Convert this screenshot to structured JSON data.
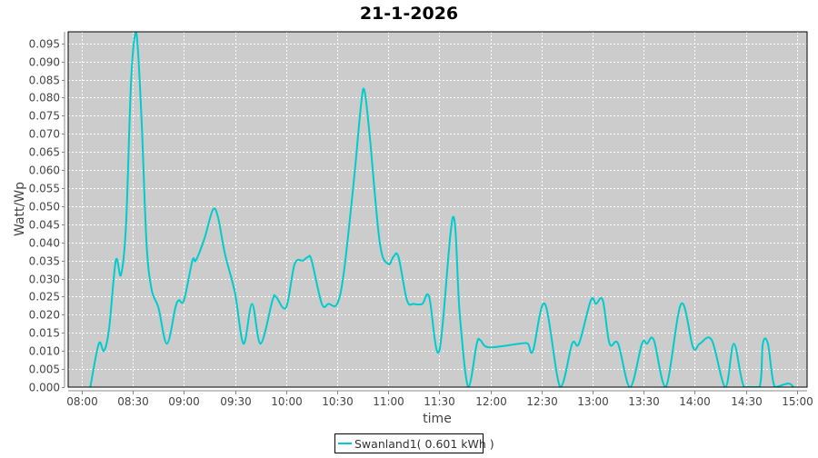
{
  "chart_data": {
    "type": "line",
    "title": "21-1-2026",
    "xlabel": "time",
    "ylabel": "Watt/Wp",
    "xlim": [
      "07:52",
      "15:06"
    ],
    "ylim": [
      0,
      0.0982
    ],
    "grid": true,
    "legend_position": "bottom",
    "x_ticks": [
      "08:00",
      "08:30",
      "09:00",
      "09:30",
      "10:00",
      "10:30",
      "11:00",
      "11:30",
      "12:00",
      "12:30",
      "13:00",
      "13:30",
      "14:00",
      "14:30",
      "15:00"
    ],
    "y_ticks": [
      "0.000",
      "0.005",
      "0.010",
      "0.015",
      "0.020",
      "0.025",
      "0.030",
      "0.035",
      "0.040",
      "0.045",
      "0.050",
      "0.055",
      "0.060",
      "0.065",
      "0.070",
      "0.075",
      "0.080",
      "0.085",
      "0.090",
      "0.095"
    ],
    "series": [
      {
        "name": "Swanland1( 0.601 kWh )",
        "color": "#00cccc",
        "x": [
          "08:05",
          "08:10",
          "08:13",
          "08:16",
          "08:20",
          "08:23",
          "08:26",
          "08:29",
          "08:32",
          "08:35",
          "08:38",
          "08:41",
          "08:45",
          "08:50",
          "08:55",
          "08:57",
          "09:00",
          "09:05",
          "09:07",
          "09:12",
          "09:17",
          "09:20",
          "09:24",
          "09:30",
          "09:35",
          "09:40",
          "09:45",
          "09:52",
          "09:54",
          "10:00",
          "10:05",
          "10:10",
          "10:13",
          "10:15",
          "10:21",
          "10:25",
          "10:30",
          "10:34",
          "10:40",
          "10:44",
          "10:46",
          "10:49",
          "10:55",
          "11:00",
          "11:03",
          "11:06",
          "11:11",
          "11:15",
          "11:20",
          "11:24",
          "11:30",
          "11:38",
          "11:42",
          "11:47",
          "11:52",
          "11:54",
          "11:59",
          "12:17",
          "12:22",
          "12:25",
          "12:32",
          "12:41",
          "12:48",
          "12:52",
          "12:59",
          "13:02",
          "13:06",
          "13:10",
          "13:15",
          "13:22",
          "13:29",
          "13:32",
          "13:36",
          "13:43",
          "13:52",
          "13:59",
          "14:03",
          "14:10",
          "14:18",
          "14:23",
          "14:29",
          "14:38",
          "14:40",
          "14:43",
          "14:47",
          "14:55",
          "14:58"
        ],
        "y": [
          0,
          0.012,
          0.01,
          0.016,
          0.035,
          0.031,
          0.045,
          0.085,
          0.098,
          0.075,
          0.04,
          0.027,
          0.022,
          0.012,
          0.022,
          0.024,
          0.024,
          0.035,
          0.035,
          0.041,
          0.049,
          0.047,
          0.037,
          0.026,
          0.012,
          0.023,
          0.012,
          0.024,
          0.025,
          0.022,
          0.034,
          0.035,
          0.036,
          0.035,
          0.023,
          0.023,
          0.023,
          0.032,
          0.058,
          0.078,
          0.082,
          0.07,
          0.04,
          0.034,
          0.036,
          0.036,
          0.024,
          0.023,
          0.023,
          0.025,
          0.01,
          0.047,
          0.02,
          0.0,
          0.012,
          0.013,
          0.011,
          0.012,
          0.012,
          0.01,
          0.023,
          0.0,
          0.012,
          0.012,
          0.024,
          0.023,
          0.024,
          0.012,
          0.012,
          0.0,
          0.012,
          0.012,
          0.013,
          0.0,
          0.023,
          0.011,
          0.012,
          0.013,
          0.0,
          0.012,
          0.0,
          0.0,
          0.012,
          0.012,
          0.0,
          0.001,
          0.0
        ]
      }
    ]
  }
}
